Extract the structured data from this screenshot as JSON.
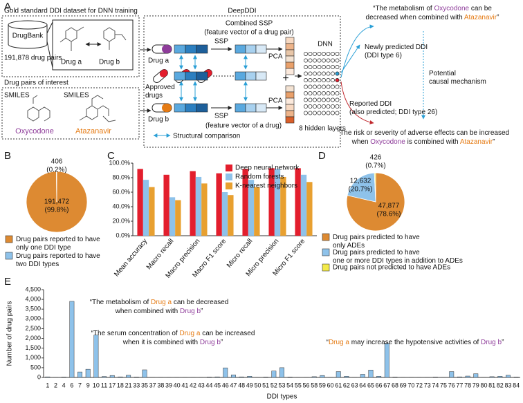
{
  "panel_labels": [
    "A",
    "B",
    "C",
    "D",
    "E"
  ],
  "diagram": {
    "training_title": "Gold standard DDI dataset for DNN training",
    "database": "DrugBank",
    "pair_count": "191,878 drug pairs",
    "drug_a": "Drug a",
    "drug_b": "Drug b",
    "interest_title": "Drug pairs of interest",
    "smiles": [
      "SMILES",
      "SMILES"
    ],
    "drug_names": [
      {
        "text": "Oxycodone",
        "color": "#8e3c9a"
      },
      {
        "text": "Atazanavir",
        "color": "#e57b14"
      }
    ],
    "deepddi_title": "DeepDDI",
    "input_a": "Drug a",
    "approved": "Approved\ndrugs",
    "input_b": "Drug b",
    "ssp": [
      "SSP",
      "SSP"
    ],
    "pca": [
      "PCA",
      "PCA"
    ],
    "combined_ssp": "Combined SSP",
    "combined_note": "(feature vector of a drug pair)",
    "drug_vector_note": "(feature vector of a drug)",
    "comparison": "Structural comparison",
    "plus": "+",
    "dnn": "DNN",
    "hidden_layers": "8 hidden layers",
    "new_ddi": "Newly predicted DDI\n(DDI type 6)",
    "mechanism": "Potential\ncausal mechanism",
    "reported_ddi": "Reported DDI\n(also predicted; DDI type 26)",
    "quote_top": [
      [
        {
          "text": "“The metabolism of "
        },
        {
          "text": "Oxycodone",
          "color": "#8e3c9a"
        },
        {
          "text": " can be"
        }
      ],
      [
        {
          "text": "decreased when combined with "
        },
        {
          "text": "Atazanavir",
          "color": "#e57b14"
        },
        {
          "text": "”"
        }
      ]
    ],
    "quote_bottom": [
      [
        {
          "text": "“The risk or severity of adverse effects can be increased"
        }
      ],
      [
        {
          "text": "when "
        },
        {
          "text": "Oxycodone",
          "color": "#8e3c9a"
        },
        {
          "text": " is combined with "
        },
        {
          "text": "Atazanavir",
          "color": "#e57b14"
        },
        {
          "text": "”"
        }
      ]
    ]
  },
  "chart_data": [
    {
      "type": "pie",
      "categories": [
        "Drug pairs reported to have\nonly one DDI type",
        "Drug pairs reported to have\ntwo DDI types"
      ],
      "values": [
        191472,
        406
      ],
      "value_labels": [
        "191,472",
        "406"
      ],
      "percent_labels": [
        "(99.8%)",
        "(0.2%)"
      ],
      "colors": [
        "#dd8a32",
        "#8ec2ea"
      ]
    },
    {
      "type": "bar",
      "categories": [
        "Mean accuracy",
        "Macro recall",
        "Macro precision",
        "Macro F1 score",
        "Micro recall",
        "Micro precision",
        "Micro F1 score"
      ],
      "series": [
        {
          "name": "Deep neural network",
          "color": "#e31e2d",
          "values": [
            92,
            84,
            89,
            86,
            92,
            93,
            93
          ]
        },
        {
          "name": "Random forests",
          "color": "#8ec2ea",
          "values": [
            77,
            53,
            81,
            60,
            77,
            92,
            84
          ]
        },
        {
          "name": "K-nearest neighbors",
          "color": "#e8a030",
          "values": [
            67,
            49,
            72,
            56,
            67,
            81,
            74
          ]
        }
      ],
      "ylim": [
        0,
        100
      ],
      "yticks": [
        {
          "value": 0,
          "label": "0.0%"
        },
        {
          "value": 20,
          "label": "20.0%"
        },
        {
          "value": 40,
          "label": "40.0%"
        },
        {
          "value": 60,
          "label": "60.0%"
        },
        {
          "value": 80,
          "label": "80.0%"
        },
        {
          "value": 100,
          "label": "100.0%"
        }
      ]
    },
    {
      "type": "pie",
      "categories": [
        "Drug pairs predicted to have\nonly ADEs",
        "Drug pairs predicted to have\none or more DDI types in addition to ADEs",
        "Drug pairs not predicted to have ADEs"
      ],
      "values": [
        47877,
        12632,
        426
      ],
      "value_labels": [
        "47,877",
        "12,632",
        "426"
      ],
      "percent_labels": [
        "(78.6%)",
        "(20.7%)",
        "(0.7%)"
      ],
      "colors": [
        "#dd8a32",
        "#8ec2ea",
        "#f3ea4a"
      ]
    },
    {
      "type": "bar",
      "x_label": "DDI types",
      "y_label": "Number of drug pairs",
      "color": "#8ec2ea",
      "categories": [
        "1",
        "2",
        "4",
        "6",
        "7",
        "9",
        "10",
        "11",
        "17",
        "18",
        "21",
        "33",
        "35",
        "37",
        "38",
        "39",
        "40",
        "41",
        "42",
        "43",
        "44",
        "45",
        "46",
        "47",
        "48",
        "49",
        "50",
        "51",
        "52",
        "53",
        "54",
        "55",
        "56",
        "58",
        "59",
        "60",
        "61",
        "62",
        "63",
        "64",
        "65",
        "66",
        "67",
        "68",
        "69",
        "70",
        "72",
        "73",
        "74",
        "75",
        "76",
        "77",
        "78",
        "79",
        "80",
        "81",
        "82",
        "83",
        "84"
      ],
      "values": [
        30,
        10,
        20,
        3900,
        280,
        420,
        2170,
        50,
        100,
        30,
        110,
        20,
        390,
        10,
        10,
        10,
        10,
        10,
        10,
        10,
        20,
        30,
        490,
        130,
        30,
        60,
        10,
        20,
        330,
        500,
        20,
        10,
        10,
        40,
        100,
        10,
        300,
        60,
        10,
        160,
        380,
        60,
        1750,
        20,
        10,
        10,
        10,
        10,
        20,
        10,
        300,
        30,
        70,
        190,
        10,
        40,
        60,
        110,
        20
      ],
      "ylim": [
        0,
        4500
      ],
      "yticks": [
        0,
        500,
        {
          "value": 1000,
          "label": "1,000"
        },
        {
          "value": 1500,
          "label": "1,500"
        },
        {
          "value": 2000,
          "label": "2,000"
        },
        {
          "value": 2500,
          "label": "2,500"
        },
        {
          "value": 3000,
          "label": "3,000"
        },
        {
          "value": 3500,
          "label": "3,500"
        },
        {
          "value": 4000,
          "label": "4,000"
        },
        {
          "value": 4500,
          "label": "4,500"
        }
      ],
      "annotations": [
        [
          [
            {
              "text": "“The metabolism of "
            },
            {
              "text": "Drug a",
              "color": "#e57b14"
            },
            {
              "text": " can be decreased"
            }
          ],
          [
            {
              "text": "when combined with "
            },
            {
              "text": "Drug b",
              "color": "#8e3c9a"
            },
            {
              "text": "”"
            }
          ]
        ],
        [
          [
            {
              "text": "“The serum concentration of "
            },
            {
              "text": "Drug a",
              "color": "#e57b14"
            },
            {
              "text": " can be increased"
            }
          ],
          [
            {
              "text": "when it is combined with "
            },
            {
              "text": "Drug b",
              "color": "#8e3c9a"
            },
            {
              "text": "”"
            }
          ]
        ],
        [
          [
            {
              "text": "“"
            },
            {
              "text": "Drug a",
              "color": "#e57b14"
            },
            {
              "text": " may increase the hypotensive activities of "
            },
            {
              "text": "Drug b",
              "color": "#8e3c9a"
            },
            {
              "text": "”"
            }
          ]
        ]
      ]
    }
  ]
}
